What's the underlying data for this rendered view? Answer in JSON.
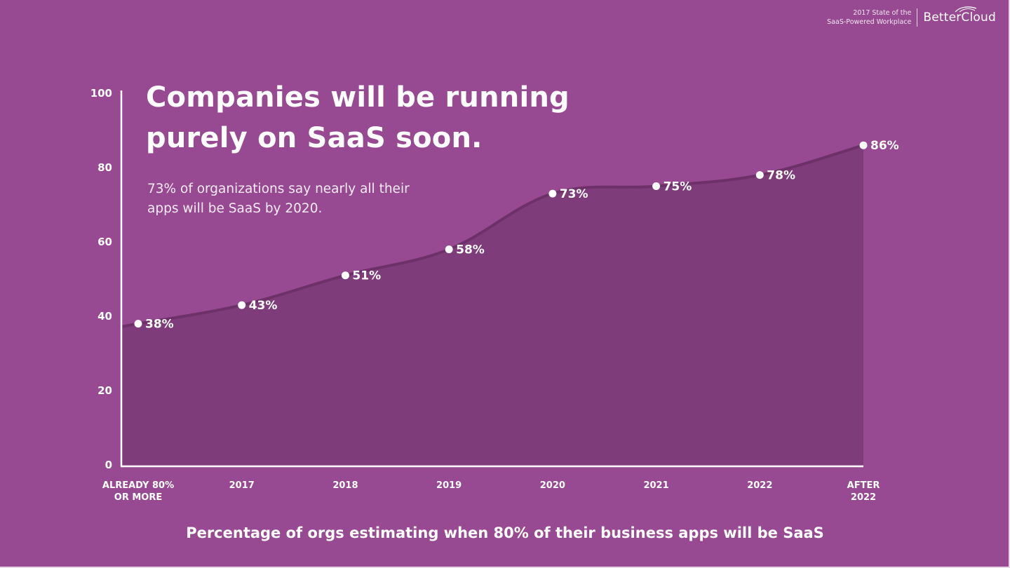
{
  "branding": {
    "caption_line1": "2017 State of the",
    "caption_line2": "SaaS-Powered Workplace",
    "logo_text": "BetterCloud"
  },
  "colors": {
    "background": "#974a91",
    "area_fill": "#7e3d7a",
    "line": "#6e3069",
    "axis": "#ffffff",
    "text": "#ffffff"
  },
  "chart_data": {
    "type": "area",
    "title_line1": "Companies will be running",
    "title_line2": "purely on SaaS soon.",
    "subtitle_line1": "73% of organizations say nearly all their",
    "subtitle_line2": "apps will be SaaS by 2020.",
    "xlabel": "Percentage of orgs estimating when 80% of their business apps will be SaaS",
    "ylabel": "",
    "ylim": [
      0,
      100
    ],
    "yticks": [
      0,
      20,
      40,
      60,
      80,
      100
    ],
    "grid": false,
    "legend": "none",
    "categories": [
      [
        "ALREADY 80%",
        "OR MORE"
      ],
      [
        "2017"
      ],
      [
        "2018"
      ],
      [
        "2019"
      ],
      [
        "2020"
      ],
      [
        "2021"
      ],
      [
        "2022"
      ],
      [
        "AFTER",
        "2022"
      ]
    ],
    "series": [
      {
        "name": "Percentage of orgs",
        "values": [
          38,
          43,
          51,
          58,
          73,
          75,
          78,
          86
        ]
      }
    ],
    "data_labels": [
      "38%",
      "43%",
      "51%",
      "58%",
      "73%",
      "75%",
      "78%",
      "86%"
    ]
  }
}
